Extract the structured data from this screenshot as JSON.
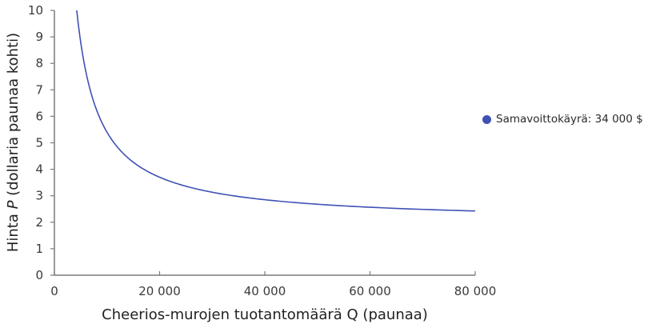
{
  "chart_data": {
    "type": "line",
    "title": "",
    "xlabel": "Cheerios-murojen tuotantomäärä Q (paunaa)",
    "ylabel_prefix": "Hinta ",
    "ylabel_var": "P",
    "ylabel_suffix": " (dollaria paunaa kohti)",
    "xlim": [
      0,
      80000
    ],
    "ylim": [
      0,
      10
    ],
    "x_ticks": [
      0,
      20000,
      40000,
      60000,
      80000
    ],
    "x_tick_labels": [
      "0",
      "20 000",
      "40 000",
      "60 000",
      "80 000"
    ],
    "y_ticks": [
      0,
      1,
      2,
      3,
      4,
      5,
      6,
      7,
      8,
      9,
      10
    ],
    "y_tick_labels": [
      "0",
      "1",
      "2",
      "3",
      "4",
      "5",
      "6",
      "7",
      "8",
      "9",
      "10"
    ],
    "grid": false,
    "legend_position": "right",
    "series": [
      {
        "name": "Samavoittokäyrä: 34 000 $",
        "color": "#3f51b5",
        "formula": "P = 2 + 34000 / Q",
        "x": [
          4250,
          5000,
          6000,
          8000,
          10000,
          12000,
          15000,
          20000,
          25000,
          30000,
          40000,
          50000,
          60000,
          70000,
          80000
        ],
        "y": [
          10.0,
          8.8,
          7.67,
          6.25,
          5.4,
          4.83,
          4.27,
          3.7,
          3.36,
          3.13,
          2.85,
          2.68,
          2.57,
          2.49,
          2.43
        ]
      }
    ]
  },
  "legend": {
    "items": [
      {
        "label": "Samavoittokäyrä: 34 000 $",
        "color": "#3f51b5"
      }
    ]
  }
}
